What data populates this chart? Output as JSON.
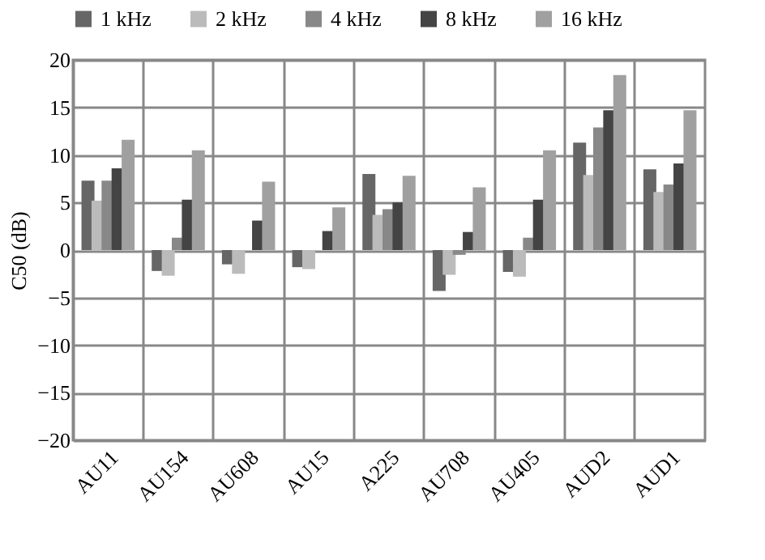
{
  "chart_data": {
    "type": "bar",
    "ylabel": "C50 (dB)",
    "categories": [
      "AU11",
      "AU154",
      "AU608",
      "AU15",
      "A225",
      "AU708",
      "AU405",
      "AUD2",
      "AUD1"
    ],
    "series": [
      {
        "name": "1 kHz",
        "color": "#666666",
        "values": [
          7.3,
          -2.2,
          -1.5,
          -1.8,
          8.0,
          -4.3,
          -2.3,
          11.3,
          8.5
        ]
      },
      {
        "name": "2 kHz",
        "color": "#bbbbbb",
        "values": [
          5.2,
          -2.7,
          -2.5,
          -2.0,
          3.7,
          -2.6,
          -2.8,
          7.9,
          6.1
        ]
      },
      {
        "name": "4 kHz",
        "color": "#888888",
        "values": [
          7.3,
          1.3,
          0,
          0,
          4.3,
          -0.5,
          1.3,
          12.9,
          6.9
        ]
      },
      {
        "name": "8 kHz",
        "color": "#444444",
        "values": [
          8.6,
          5.3,
          3.1,
          2.0,
          5.0,
          1.9,
          5.3,
          14.7,
          9.1
        ]
      },
      {
        "name": "16 kHz",
        "color": "#a0a0a0",
        "values": [
          11.6,
          10.5,
          7.2,
          4.5,
          7.8,
          6.6,
          10.5,
          18.4,
          14.7
        ]
      }
    ],
    "ylim": [
      -20,
      20
    ],
    "yticks": [
      -20,
      -15,
      -10,
      -5,
      0,
      5,
      10,
      15,
      20
    ],
    "grid": true,
    "legend": "top"
  }
}
